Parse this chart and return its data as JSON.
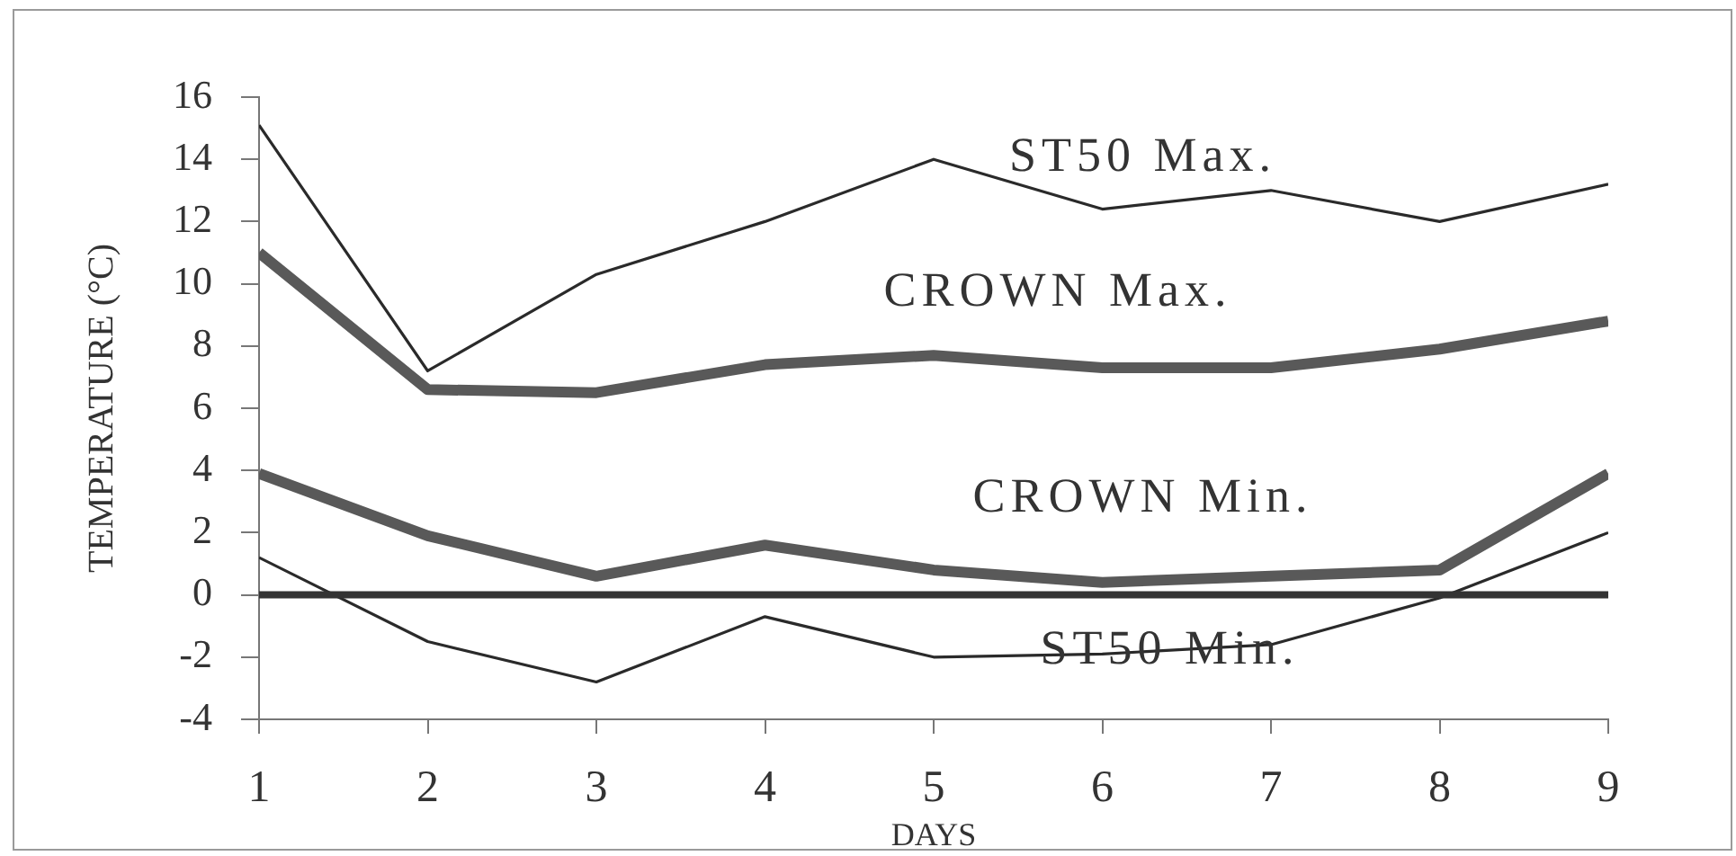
{
  "chart_data": {
    "type": "line",
    "xlabel": "DAYS",
    "ylabel": "TEMPERATURE (°C)",
    "x": [
      1,
      2,
      3,
      4,
      5,
      6,
      7,
      8,
      9
    ],
    "series": [
      {
        "name": "ST50 Max.",
        "color": "#2a2a2a",
        "values": [
          15.1,
          7.2,
          10.3,
          12.0,
          14.0,
          12.4,
          13.0,
          12.0,
          13.2
        ]
      },
      {
        "name": "CROWN Max.",
        "color": "#595959",
        "values": [
          11.0,
          6.6,
          6.5,
          7.4,
          7.7,
          7.3,
          7.3,
          7.9,
          8.8
        ]
      },
      {
        "name": "CROWN Min.",
        "color": "#595959",
        "values": [
          3.9,
          1.9,
          0.6,
          1.6,
          0.8,
          0.4,
          0.6,
          0.8,
          3.9
        ]
      },
      {
        "name": "ST50 Min.",
        "color": "#2a2a2a",
        "values": [
          1.2,
          -1.5,
          -2.8,
          -0.7,
          -2.0,
          -1.9,
          -1.6,
          -0.1,
          2.0
        ]
      }
    ],
    "xlim": [
      1,
      9
    ],
    "xticks": [
      1,
      2,
      3,
      4,
      5,
      6,
      7,
      8,
      9
    ],
    "ylim": [
      -4,
      16
    ],
    "yticks": [
      -4,
      -2,
      0,
      2,
      4,
      6,
      8,
      10,
      12,
      14,
      16
    ],
    "ref_lines": [
      {
        "axis": "y",
        "value": 0,
        "color": "#333333"
      }
    ],
    "grid": false,
    "legend": false,
    "marker": "none",
    "line_style": "solid"
  }
}
